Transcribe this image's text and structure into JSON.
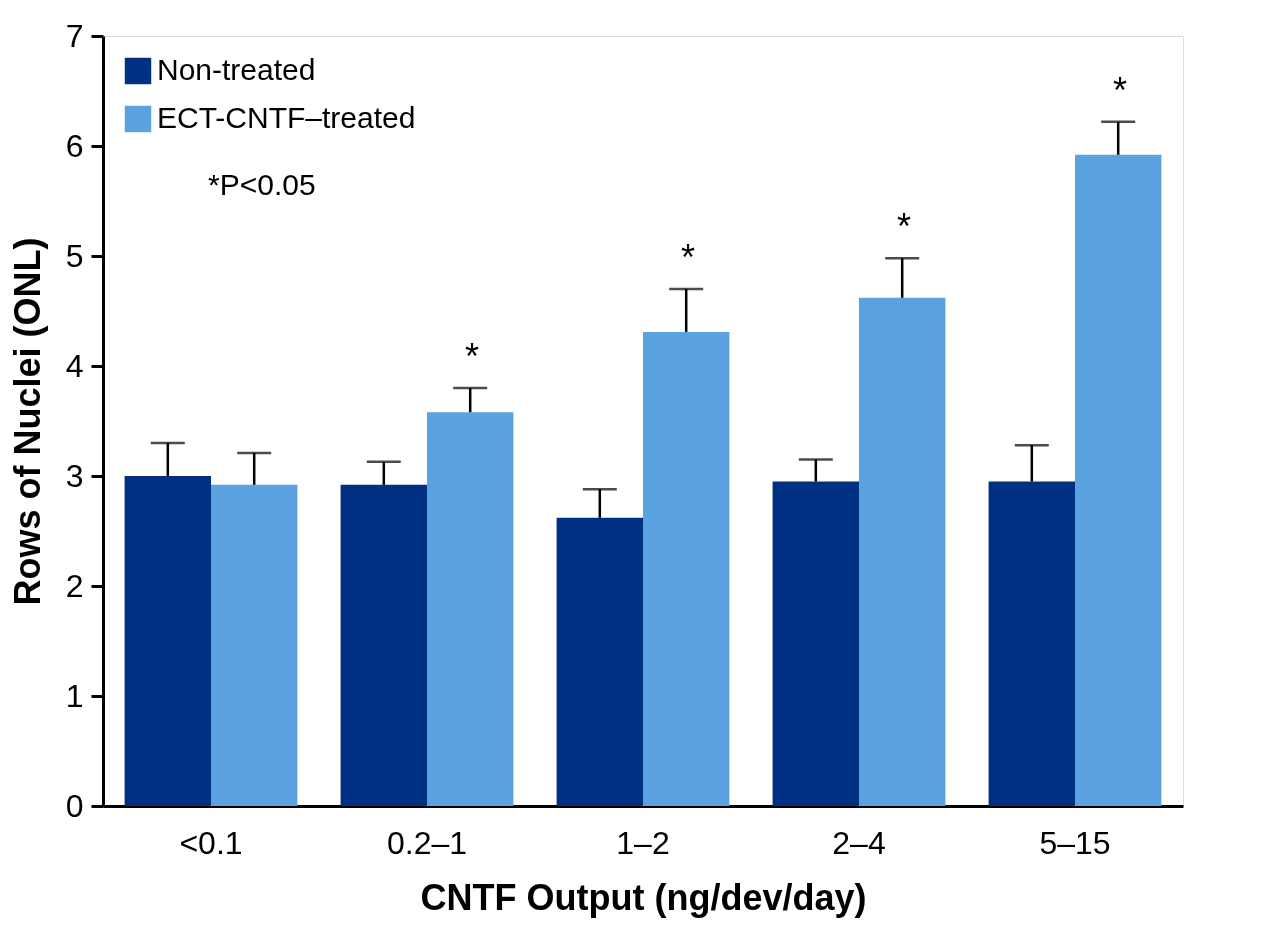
{
  "chart_data": {
    "type": "bar",
    "xlabel": "CNTF Output (ng/dev/day)",
    "ylabel": "Rows of Nuclei (ONL)",
    "categories": [
      "<0.1",
      "0.2–1",
      "1–2",
      "2–4",
      "5–15"
    ],
    "series": [
      {
        "name": "Non-treated",
        "color": "#003082",
        "values": [
          3.0,
          2.92,
          2.62,
          2.95,
          2.95
        ],
        "errors": [
          [
            3.0,
            3.3
          ],
          [
            2.92,
            3.13
          ],
          [
            2.62,
            2.88
          ],
          [
            2.95,
            3.15
          ],
          [
            2.95,
            3.28
          ]
        ]
      },
      {
        "name": "ECT-CNTF–treated",
        "color": "#5ba3e0",
        "values": [
          2.92,
          3.58,
          4.31,
          4.62,
          5.92
        ],
        "errors": [
          [
            2.92,
            3.21
          ],
          [
            3.58,
            3.8
          ],
          [
            4.31,
            4.7
          ],
          [
            4.62,
            4.98
          ],
          [
            5.92,
            6.22
          ]
        ]
      }
    ],
    "ylim": [
      0,
      7
    ],
    "yticks": [
      0,
      1,
      2,
      3,
      4,
      5,
      6,
      7
    ],
    "grid": false,
    "legend": "top left",
    "annotations": [
      "*P<0.05",
      "*",
      "*",
      "*",
      "*"
    ]
  }
}
